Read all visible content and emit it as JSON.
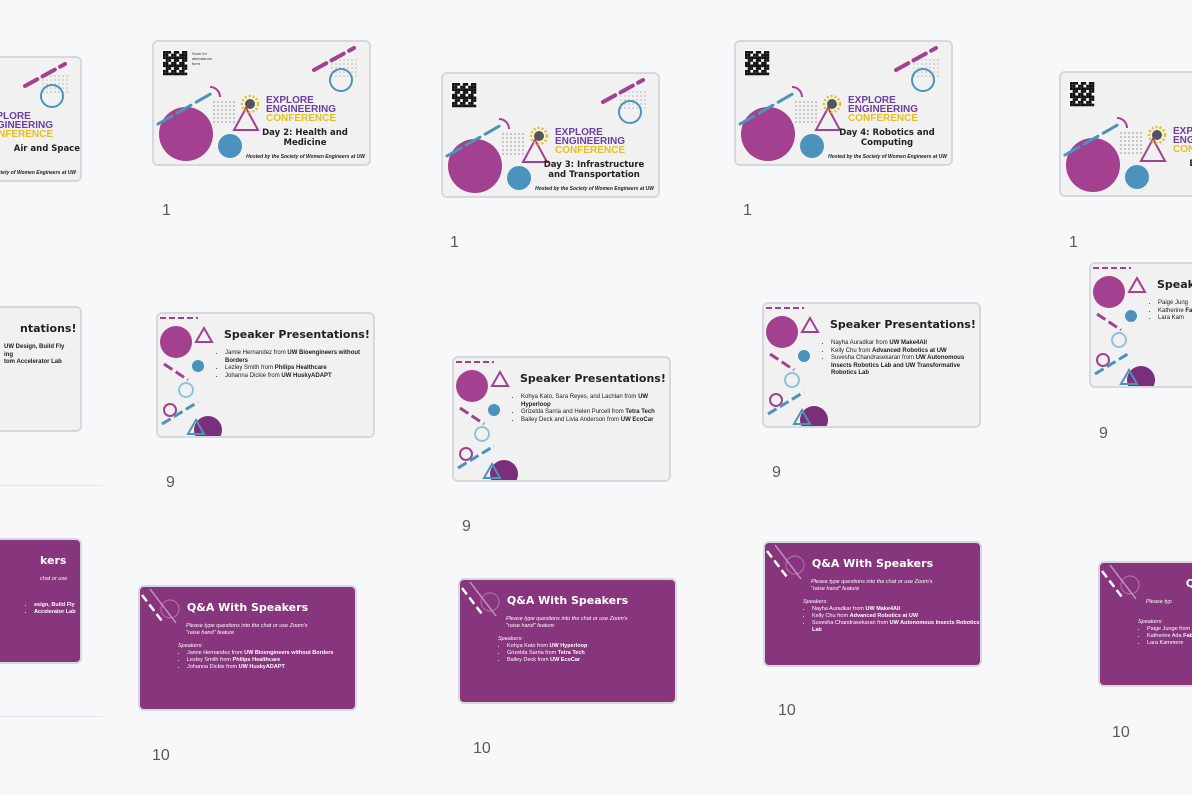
{
  "slides": [
    {
      "kind": "title",
      "brand": [
        "EXPLORE",
        "ENGINEERING",
        "CONFERENCE"
      ],
      "day": "Air and Space",
      "host": "Hosted by the Society of Women Engineers at UW"
    },
    {
      "kind": "title",
      "scan": "Scan for attendance form",
      "brand": [
        "EXPLORE",
        "ENGINEERING",
        "CONFERENCE"
      ],
      "day": "Day 2: Health and Medicine",
      "host": "Hosted by the Society of Women Engineers at UW",
      "number": "1"
    },
    {
      "kind": "title",
      "brand": [
        "EXPLORE",
        "ENGINEERING",
        "CONFERENCE"
      ],
      "day": "Day 3: Infrastructure and Transportation",
      "host": "Hosted by the Society of Women Engineers at UW",
      "number": "1"
    },
    {
      "kind": "title",
      "brand": [
        "EXPLORE",
        "ENGINEERING",
        "CONFERENCE"
      ],
      "day": "Day 4: Robotics and Computing",
      "host": "Hosted by the Society of Women Engineers at UW",
      "number": "1"
    },
    {
      "kind": "title",
      "brand": [
        "EXPLORE",
        "ENGINEERING",
        "CONFERENCE"
      ],
      "day": "Day 5: En",
      "host": "Hosted by",
      "number": "1"
    },
    {
      "kind": "speaker",
      "title": "ntations!",
      "bullets": [
        {
          "bold": "UW Design, Build Fly"
        },
        {
          "bold": "ing"
        },
        {
          "bold": "tom Accelerator Lab"
        }
      ]
    },
    {
      "kind": "speaker",
      "title": "Speaker Presentations!",
      "bullets": [
        {
          "text": "Jamie Hernandez from",
          "bold": "UW Bioengineers without Borders"
        },
        {
          "text": "Lezley Smith from",
          "bold": "Philips Healthcare"
        },
        {
          "text": "Johanna Dickie from",
          "bold": "UW HuskyADAPT"
        }
      ],
      "number": "9"
    },
    {
      "kind": "speaker",
      "title": "Speaker Presentations!",
      "bullets": [
        {
          "text": "Kohya Kato, Sara Reyes, and Lachlan from",
          "bold": "UW Hyperloop"
        },
        {
          "text": "Grizelda Sarria and Helen Purcell from",
          "bold": "Tetra Tech"
        },
        {
          "text": "Bailey Deck and Livia Anderson from",
          "bold": "UW EcoCar"
        }
      ],
      "number": "9"
    },
    {
      "kind": "speaker",
      "title": "Speaker Presentations!",
      "bullets": [
        {
          "text": "Nayha Auradkar from",
          "bold": "UW Make4All"
        },
        {
          "text": "Kelly Chu from",
          "bold": "Advanced Robotics at UW"
        },
        {
          "text": "Suvesha Chandrasekaran from",
          "bold": "UW Autonomous Insects Robotics Lab and UW Transformative Robotics Lab"
        }
      ],
      "number": "9"
    },
    {
      "kind": "speaker",
      "title": "Speak",
      "bullets": [
        {
          "text": "Paige Jung"
        },
        {
          "text": "Katherine",
          "bold": "Fabrication"
        },
        {
          "text": "Lara Kam"
        }
      ],
      "number": "9"
    },
    {
      "kind": "qa",
      "title": "kers",
      "prompt": "chat or use",
      "bullets": [
        {
          "bold": "esign, Build Fly"
        },
        {
          "bold": "Accelerator Lab"
        }
      ]
    },
    {
      "kind": "qa",
      "title": "Q&A With Speakers",
      "prompt": "Please type questions into the chat or use Zoom's \"raise hand\" feature",
      "label": "Speakers:",
      "bullets": [
        {
          "text": "Jamie Hernandez from",
          "bold": "UW Bioengineers without Borders"
        },
        {
          "text": "Lezley Smith from",
          "bold": "Philips Healthcare"
        },
        {
          "text": "Johanna Dickie from",
          "bold": "UW HuskyADAPT"
        }
      ],
      "number": "10"
    },
    {
      "kind": "qa",
      "title": "Q&A With Speakers",
      "prompt": "Please type questions into the chat or use Zoom's \"raise hand\" feature",
      "label": "Speakers:",
      "bullets": [
        {
          "text": "Kohya Kato from",
          "bold": "UW Hyperloop"
        },
        {
          "text": "Grizelda Sarria from",
          "bold": "Tetra Tech"
        },
        {
          "text": "Bailey Deck from",
          "bold": "UW EcoCar"
        }
      ],
      "number": "10"
    },
    {
      "kind": "qa",
      "title": "Q&A With Speakers",
      "prompt": "Please type questions into the chat or use Zoom's \"raise hand\" feature",
      "label": "Speakers:",
      "bullets": [
        {
          "text": "Nayha Auradkar from",
          "bold": "UW Make4All"
        },
        {
          "text": "Kelly Chu from",
          "bold": "Advanced Robotics at UW"
        },
        {
          "text": "Suvesha Chandrasekaran from",
          "bold": "UW Autonomous Insects Robotics Lab"
        }
      ],
      "number": "10"
    },
    {
      "kind": "qa",
      "title": "Q&A W",
      "prompt": "Please typ",
      "label": "Speakers:",
      "bullets": [
        {
          "text": "Paige Junge from"
        },
        {
          "text": "Katherine Ada",
          "bold": "Fabrication La"
        },
        {
          "text": "Lara Kammere"
        }
      ],
      "number": "10"
    }
  ]
}
